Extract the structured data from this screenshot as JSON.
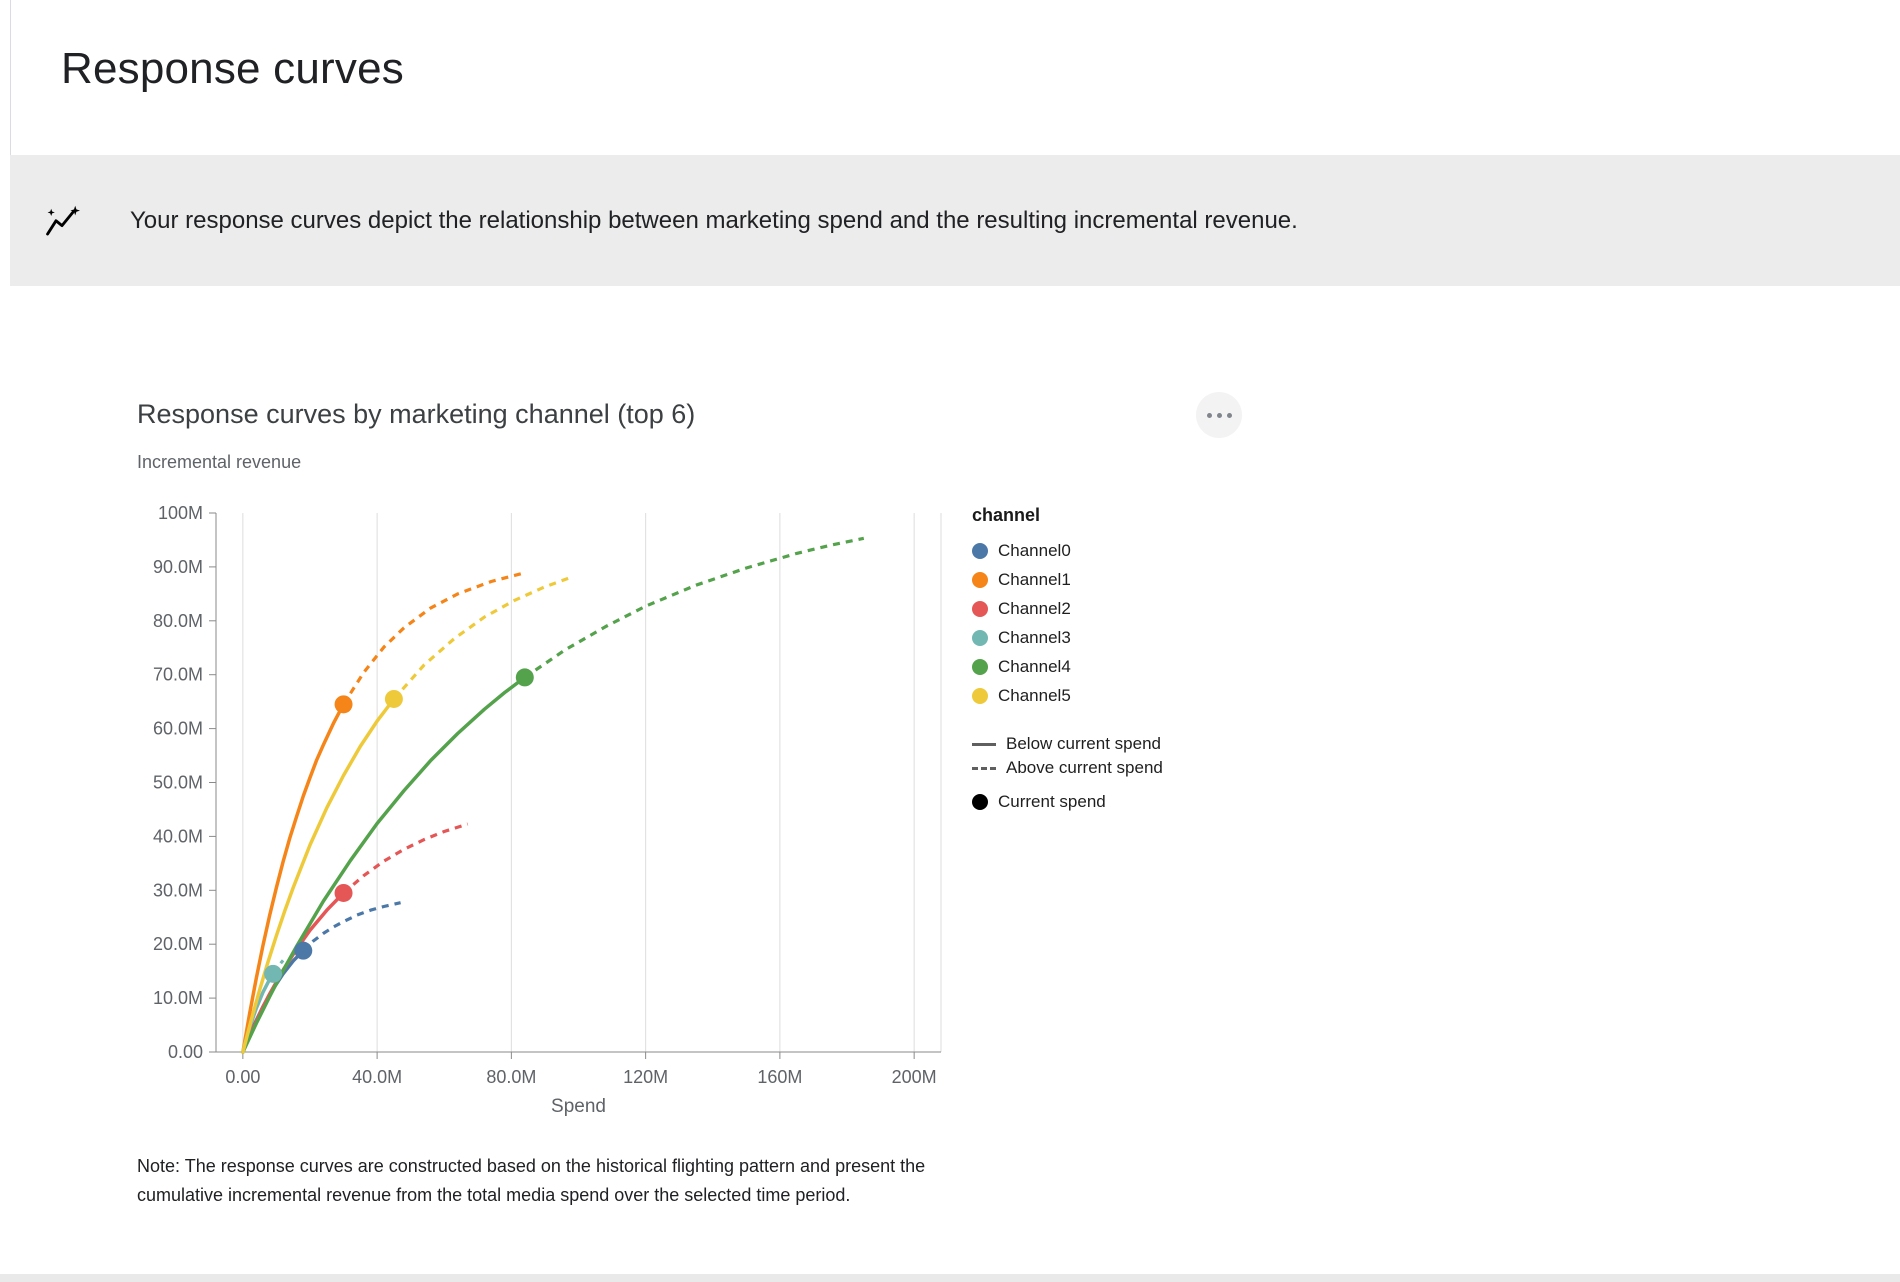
{
  "page": {
    "title": "Response curves",
    "banner": {
      "icon": "insights-sparkline-icon",
      "text": "Your response curves depict the relationship between marketing spend and the resulting incremental revenue."
    },
    "menu_icon": "more-options-icon",
    "note": "Note: The response curves are constructed based on the historical flighting pattern and present the cumulative incremental revenue from the total media spend over the selected time period."
  },
  "chart_data": {
    "type": "line",
    "title": "Response curves by marketing channel (top 6)",
    "y_axis_title": "Incremental revenue",
    "xlabel": "Spend",
    "legend_title": "channel",
    "x_domain_m": [
      -8,
      208
    ],
    "y_domain_m": [
      0,
      100
    ],
    "grid": "vertical-only",
    "legend_position": "right",
    "x_ticks": [
      {
        "value_m": 0,
        "label": "0.00"
      },
      {
        "value_m": 40,
        "label": "40.0M"
      },
      {
        "value_m": 80,
        "label": "80.0M"
      },
      {
        "value_m": 120,
        "label": "120M"
      },
      {
        "value_m": 160,
        "label": "160M"
      },
      {
        "value_m": 200,
        "label": "200M"
      }
    ],
    "y_ticks": [
      {
        "value_m": 0,
        "label": "0.00"
      },
      {
        "value_m": 10,
        "label": "10.0M"
      },
      {
        "value_m": 20,
        "label": "20.0M"
      },
      {
        "value_m": 30,
        "label": "30.0M"
      },
      {
        "value_m": 40,
        "label": "40.0M"
      },
      {
        "value_m": 50,
        "label": "50.0M"
      },
      {
        "value_m": 60,
        "label": "60.0M"
      },
      {
        "value_m": 70,
        "label": "70.0M"
      },
      {
        "value_m": 80,
        "label": "80.0M"
      },
      {
        "value_m": 90,
        "label": "90.0M"
      },
      {
        "value_m": 100,
        "label": "100M"
      }
    ],
    "line_legend": [
      {
        "style": "solid",
        "label": "Below current spend"
      },
      {
        "style": "dashed",
        "label": "Above current spend"
      },
      {
        "style": "dot",
        "label": "Current spend"
      }
    ],
    "series": [
      {
        "name": "Channel0",
        "color": "#4c78a8",
        "current_spend_m": [
          18,
          18.8
        ],
        "below_current_m": [
          [
            0,
            0
          ],
          [
            1.5,
            2.4
          ],
          [
            3,
            4.6
          ],
          [
            6,
            8.4
          ],
          [
            9,
            11.7
          ],
          [
            12,
            14.5
          ],
          [
            15,
            16.9
          ],
          [
            18,
            18.8
          ]
        ],
        "above_current_m": [
          [
            18,
            18.8
          ],
          [
            21,
            20.6
          ],
          [
            24,
            22.0
          ],
          [
            27,
            23.2
          ],
          [
            30,
            24.2
          ],
          [
            34,
            25.4
          ],
          [
            38,
            26.3
          ],
          [
            42,
            27.0
          ],
          [
            47,
            27.7
          ]
        ]
      },
      {
        "name": "Channel1",
        "color": "#f58518",
        "current_spend_m": [
          30,
          64.5
        ],
        "below_current_m": [
          [
            0,
            0
          ],
          [
            2,
            7.1
          ],
          [
            4,
            13.7
          ],
          [
            6,
            19.8
          ],
          [
            8,
            25.4
          ],
          [
            10,
            30.5
          ],
          [
            12,
            35.3
          ],
          [
            14,
            39.7
          ],
          [
            16,
            43.7
          ],
          [
            18,
            47.5
          ],
          [
            20,
            50.9
          ],
          [
            22,
            54.2
          ],
          [
            24,
            57.0
          ],
          [
            27,
            61.0
          ],
          [
            30,
            64.5
          ]
        ],
        "above_current_m": [
          [
            30,
            64.5
          ],
          [
            36,
            70.4
          ],
          [
            42,
            75.1
          ],
          [
            48,
            78.7
          ],
          [
            56,
            82.4
          ],
          [
            64,
            85.0
          ],
          [
            74,
            87.3
          ],
          [
            84,
            88.9
          ]
        ]
      },
      {
        "name": "Channel2",
        "color": "#e45756",
        "current_spend_m": [
          30,
          29.5
        ],
        "below_current_m": [
          [
            0,
            0
          ],
          [
            2,
            3.0
          ],
          [
            4,
            5.7
          ],
          [
            6,
            8.4
          ],
          [
            8,
            10.8
          ],
          [
            12,
            15.2
          ],
          [
            16,
            19.1
          ],
          [
            20,
            22.6
          ],
          [
            25,
            26.3
          ],
          [
            30,
            29.5
          ]
        ],
        "above_current_m": [
          [
            30,
            29.5
          ],
          [
            36,
            32.7
          ],
          [
            42,
            35.4
          ],
          [
            48,
            37.6
          ],
          [
            54,
            39.4
          ],
          [
            60,
            40.9
          ],
          [
            67,
            42.3
          ]
        ]
      },
      {
        "name": "Channel3",
        "color": "#72b7b2",
        "current_spend_m": [
          9,
          14.5
        ],
        "below_current_m": [
          [
            0,
            0
          ],
          [
            1,
            2.3
          ],
          [
            2,
            4.5
          ],
          [
            4,
            8.1
          ],
          [
            6,
            11.1
          ],
          [
            8,
            13.5
          ],
          [
            9,
            14.5
          ]
        ],
        "above_current_m": [
          [
            9,
            14.5
          ],
          [
            10.5,
            15.9
          ],
          [
            12,
            17.0
          ]
        ]
      },
      {
        "name": "Channel4",
        "color": "#54a24b",
        "current_spend_m": [
          84,
          69.5
        ],
        "below_current_m": [
          [
            0,
            0
          ],
          [
            4,
            5.3
          ],
          [
            8,
            10.3
          ],
          [
            12,
            15.1
          ],
          [
            16,
            19.6
          ],
          [
            24,
            28.0
          ],
          [
            32,
            35.5
          ],
          [
            40,
            42.4
          ],
          [
            48,
            48.5
          ],
          [
            56,
            54.1
          ],
          [
            64,
            59.1
          ],
          [
            72,
            63.6
          ],
          [
            78,
            66.7
          ],
          [
            84,
            69.5
          ]
        ],
        "above_current_m": [
          [
            84,
            69.5
          ],
          [
            96,
            74.6
          ],
          [
            108,
            78.9
          ],
          [
            120,
            82.7
          ],
          [
            135,
            86.6
          ],
          [
            150,
            89.8
          ],
          [
            165,
            92.5
          ],
          [
            175,
            94.0
          ],
          [
            185,
            95.3
          ]
        ]
      },
      {
        "name": "Channel5",
        "color": "#eeca3b",
        "current_spend_m": [
          45,
          65.5
        ],
        "below_current_m": [
          [
            0,
            0
          ],
          [
            2.5,
            5.9
          ],
          [
            5,
            11.5
          ],
          [
            7.5,
            16.7
          ],
          [
            10,
            21.6
          ],
          [
            12.5,
            26.2
          ],
          [
            15,
            30.5
          ],
          [
            20,
            38.4
          ],
          [
            25,
            45.3
          ],
          [
            30,
            51.3
          ],
          [
            35,
            56.7
          ],
          [
            40,
            61.4
          ],
          [
            45,
            65.5
          ]
        ],
        "above_current_m": [
          [
            45,
            65.5
          ],
          [
            54,
            71.8
          ],
          [
            63,
            76.7
          ],
          [
            72,
            80.7
          ],
          [
            81,
            83.8
          ],
          [
            90,
            86.3
          ],
          [
            98,
            88.1
          ]
        ]
      }
    ]
  }
}
